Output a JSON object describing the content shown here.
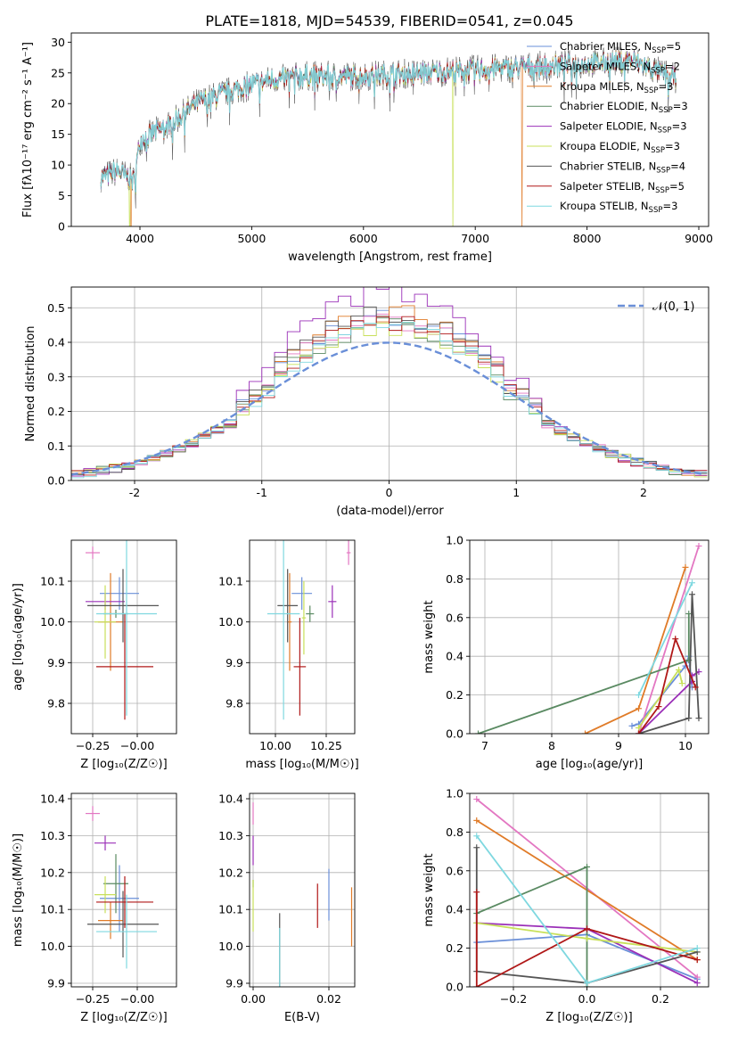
{
  "figure": {
    "suptitle": "PLATE=1818, MJD=54539, FIBERID=0541, z=0.045"
  },
  "legend_entries": [
    {
      "label": "Chabrier MILES, N",
      "sub": "SSP",
      "suffix": "=5",
      "color": "#6a8fd8"
    },
    {
      "label": "Salpeter MILES, N",
      "sub": "SSP",
      "suffix": "=2",
      "color": "#e377c2"
    },
    {
      "label": "Kroupa MILES, N",
      "sub": "SSP",
      "suffix": "=3",
      "color": "#e07b28"
    },
    {
      "label": "Chabrier ELODIE, N",
      "sub": "SSP",
      "suffix": "=3",
      "color": "#5a8a62"
    },
    {
      "label": "Salpeter ELODIE, N",
      "sub": "SSP",
      "suffix": "=3",
      "color": "#9b30b8"
    },
    {
      "label": "Kroupa ELODIE, N",
      "sub": "SSP",
      "suffix": "=3",
      "color": "#c8e05a"
    },
    {
      "label": "Chabrier STELIB, N",
      "sub": "SSP",
      "suffix": "=4",
      "color": "#555555"
    },
    {
      "label": "Salpeter STELIB, N",
      "sub": "SSP",
      "suffix": "=5",
      "color": "#b01818"
    },
    {
      "label": "Kroupa STELIB, N",
      "sub": "SSP",
      "suffix": "=3",
      "color": "#7fd8e0"
    }
  ],
  "chart_data": [
    {
      "id": "spectrum",
      "type": "line",
      "xlabel": "wavelength [Angstrom, rest frame]",
      "ylabel": "Flux [fλ10⁻¹⁷ erg cm⁻² s⁻¹ A⁻¹]",
      "xlim": [
        3400,
        9050
      ],
      "ylim": [
        0,
        31.5
      ],
      "xticks": [
        4000,
        5000,
        6000,
        7000,
        8000,
        9000
      ],
      "yticks": [
        0,
        5,
        10,
        15,
        20,
        25,
        30
      ],
      "continuum": [
        [
          3650,
          8
        ],
        [
          3800,
          9
        ],
        [
          3950,
          7.5
        ],
        [
          4000,
          14
        ],
        [
          4300,
          17
        ],
        [
          4500,
          20
        ],
        [
          4800,
          22
        ],
        [
          5200,
          24
        ],
        [
          5500,
          24.5
        ],
        [
          6000,
          24.5
        ],
        [
          6500,
          25
        ],
        [
          7000,
          25.5
        ],
        [
          7500,
          26
        ],
        [
          8000,
          26.5
        ],
        [
          8400,
          27
        ],
        [
          8800,
          24
        ]
      ],
      "model_drops": [
        {
          "series": 5,
          "x": 6800
        },
        {
          "series": 2,
          "x": 7420
        },
        {
          "series": 5,
          "x": 3910
        },
        {
          "series": 2,
          "x": 3920
        }
      ]
    },
    {
      "id": "residuals",
      "type": "histogram",
      "xlabel": "(data-model)/error",
      "ylabel": "Normed distribution",
      "xlim": [
        -2.5,
        2.5
      ],
      "ylim": [
        0,
        0.56
      ],
      "xticks": [
        -2,
        -1,
        0,
        1,
        2
      ],
      "yticks": [
        0.0,
        0.1,
        0.2,
        0.3,
        0.4,
        0.5
      ],
      "bin_width": 0.1,
      "legend": "𝒩(0, 1)",
      "series_peaks": [
        0.46,
        0.45,
        0.47,
        0.44,
        0.53,
        0.43,
        0.47,
        0.45,
        0.44
      ]
    },
    {
      "id": "age_vs_Z",
      "type": "scatter",
      "xlabel": "Z [log₁₀(Z/Z☉)]",
      "ylabel": "age  [log₁₀(age/yr)]",
      "xlim": [
        -0.32,
        0.19
      ],
      "ylim": [
        9.72,
        10.2
      ],
      "xticks": [
        -0.25,
        0.0
      ],
      "xticklabels": [
        "−0.25",
        "−0.00"
      ],
      "yticks": [
        9.8,
        9.9,
        10.0,
        10.1
      ],
      "points": [
        {
          "x": -0.1,
          "xerr": 0.11,
          "y": 10.07,
          "yerr": 0.04
        },
        {
          "x": -0.25,
          "xerr": 0.04,
          "y": 10.17,
          "yerr": 0.015
        },
        {
          "x": -0.15,
          "xerr": 0.07,
          "y": 10.0,
          "yerr": 0.12
        },
        {
          "x": -0.12,
          "xerr": 0.07,
          "y": 10.02,
          "yerr": 0.01
        },
        {
          "x": -0.18,
          "xerr": 0.11,
          "y": 10.05,
          "yerr": 0.02
        },
        {
          "x": -0.18,
          "xerr": 0.06,
          "y": 10.0,
          "yerr": 0.09
        },
        {
          "x": -0.08,
          "xerr": 0.2,
          "y": 10.04,
          "yerr": 0.09
        },
        {
          "x": -0.07,
          "xerr": 0.16,
          "y": 9.89,
          "yerr": 0.13
        },
        {
          "x": -0.06,
          "xerr": 0.17,
          "y": 10.02,
          "yerr": 0.25
        }
      ]
    },
    {
      "id": "age_vs_mass",
      "type": "scatter",
      "xlabel": "mass [log₁₀(M/M☉)]",
      "ylabel": "",
      "xlim": [
        9.9,
        10.41
      ],
      "ylim": [
        9.72,
        10.2
      ],
      "xticks": [
        10.0,
        10.25
      ],
      "xticklabels": [
        "10.00",
        "10.25"
      ],
      "yticks": [
        9.8,
        9.9,
        10.0,
        10.1
      ],
      "points": [
        {
          "x": 10.13,
          "xerr": 0.05,
          "y": 10.07,
          "yerr": 0.04
        },
        {
          "x": 10.36,
          "xerr": 0.01,
          "y": 10.17,
          "yerr": 0.03
        },
        {
          "x": 10.07,
          "xerr": 0.01,
          "y": 10.0,
          "yerr": 0.12
        },
        {
          "x": 10.17,
          "xerr": 0.02,
          "y": 10.02,
          "yerr": 0.02
        },
        {
          "x": 10.28,
          "xerr": 0.02,
          "y": 10.05,
          "yerr": 0.04
        },
        {
          "x": 10.14,
          "xerr": 0.01,
          "y": 10.01,
          "yerr": 0.09
        },
        {
          "x": 10.06,
          "xerr": 0.05,
          "y": 10.04,
          "yerr": 0.09
        },
        {
          "x": 10.12,
          "xerr": 0.03,
          "y": 9.89,
          "yerr": 0.12
        },
        {
          "x": 10.04,
          "xerr": 0.08,
          "y": 10.02,
          "yerr": 0.26
        }
      ]
    },
    {
      "id": "weight_vs_age",
      "type": "line",
      "xlabel": "age  [log₁₀(age/yr)]",
      "ylabel": "mass weight",
      "xlim": [
        6.75,
        10.35
      ],
      "ylim": [
        0,
        1.0
      ],
      "xticks": [
        7,
        8,
        9,
        10
      ],
      "yticks": [
        0.0,
        0.2,
        0.4,
        0.6,
        0.8,
        1.0
      ],
      "series": [
        [
          [
            9.2,
            0.04
          ],
          [
            9.3,
            0.05
          ],
          [
            10.0,
            0.35
          ],
          [
            10.05,
            0.4
          ],
          [
            10.1,
            0.24
          ]
        ],
        [
          [
            9.3,
            0.0
          ],
          [
            10.2,
            0.97
          ]
        ],
        [
          [
            8.5,
            0.0
          ],
          [
            9.3,
            0.13
          ],
          [
            10.0,
            0.86
          ]
        ],
        [
          [
            6.9,
            0.0
          ],
          [
            10.05,
            0.38
          ],
          [
            10.05,
            0.62
          ]
        ],
        [
          [
            9.3,
            0.0
          ],
          [
            10.1,
            0.27
          ],
          [
            10.1,
            0.3
          ],
          [
            10.2,
            0.32
          ]
        ],
        [
          [
            9.3,
            0.03
          ],
          [
            9.9,
            0.33
          ],
          [
            9.95,
            0.26
          ]
        ],
        [
          [
            9.3,
            0.0
          ],
          [
            10.05,
            0.08
          ],
          [
            10.1,
            0.72
          ],
          [
            10.2,
            0.08
          ]
        ],
        [
          [
            9.3,
            0.0
          ],
          [
            9.6,
            0.14
          ],
          [
            9.85,
            0.49
          ],
          [
            10.15,
            0.24
          ]
        ],
        [
          [
            9.3,
            0.2
          ],
          [
            10.1,
            0.78
          ]
        ]
      ]
    },
    {
      "id": "mass_vs_Z",
      "type": "scatter",
      "xlabel": "Z [log₁₀(Z/Z☉)]",
      "ylabel": "mass [log₁₀(M/M☉)]",
      "xlim": [
        -0.32,
        0.19
      ],
      "ylim": [
        9.89,
        10.41
      ],
      "xticks": [
        -0.25,
        0.0
      ],
      "xticklabels": [
        "−0.25",
        "−0.00"
      ],
      "yticks": [
        9.9,
        10.0,
        10.1,
        10.2,
        10.3,
        10.4
      ],
      "points": [
        {
          "x": -0.1,
          "xerr": 0.11,
          "y": 10.13,
          "yerr": 0.09
        },
        {
          "x": -0.25,
          "xerr": 0.04,
          "y": 10.36,
          "yerr": 0.02
        },
        {
          "x": -0.15,
          "xerr": 0.07,
          "y": 10.07,
          "yerr": 0.05
        },
        {
          "x": -0.12,
          "xerr": 0.07,
          "y": 10.17,
          "yerr": 0.08
        },
        {
          "x": -0.18,
          "xerr": 0.06,
          "y": 10.28,
          "yerr": 0.02
        },
        {
          "x": -0.18,
          "xerr": 0.06,
          "y": 10.14,
          "yerr": 0.05
        },
        {
          "x": -0.08,
          "xerr": 0.2,
          "y": 10.06,
          "yerr": 0.09
        },
        {
          "x": -0.07,
          "xerr": 0.16,
          "y": 10.12,
          "yerr": 0.07
        },
        {
          "x": -0.06,
          "xerr": 0.17,
          "y": 10.04,
          "yerr": 0.1
        }
      ]
    },
    {
      "id": "mass_vs_ebv",
      "type": "scatter",
      "xlabel": "E(B-V)",
      "ylabel": "",
      "xlim": [
        -0.001,
        0.028
      ],
      "ylim": [
        9.89,
        10.41
      ],
      "xticks": [
        0.0,
        0.02
      ],
      "xticklabels": [
        "0.00",
        "0.02"
      ],
      "yticks": [
        9.9,
        10.0,
        10.1,
        10.2,
        10.3,
        10.4
      ],
      "points": [
        {
          "x": 0.02,
          "xerr": 0,
          "y": 10.14,
          "yerr": 0.07
        },
        {
          "x": 0.0,
          "xerr": 0,
          "y": 10.36,
          "yerr": 0.03
        },
        {
          "x": 0.026,
          "xerr": 0,
          "y": 10.08,
          "yerr": 0.08
        },
        {
          "x": 0.0,
          "xerr": 0,
          "y": 10.17,
          "yerr": 0.01
        },
        {
          "x": 0.0,
          "xerr": 0,
          "y": 10.26,
          "yerr": 0.04
        },
        {
          "x": 0.0,
          "xerr": 0,
          "y": 10.11,
          "yerr": 0.07
        },
        {
          "x": 0.007,
          "xerr": 0,
          "y": 9.99,
          "yerr": 0.1
        },
        {
          "x": 0.017,
          "xerr": 0,
          "y": 10.11,
          "yerr": 0.06
        },
        {
          "x": 0.007,
          "xerr": 0,
          "y": 9.97,
          "yerr": 0.08
        }
      ]
    },
    {
      "id": "weight_vs_Z",
      "type": "line",
      "xlabel": "Z [log₁₀(Z/Z☉)]",
      "ylabel": "mass weight",
      "xlim": [
        -0.32,
        0.32
      ],
      "ylim": [
        0,
        1.0
      ],
      "xticks": [
        -0.2,
        0.0,
        0.2
      ],
      "xticklabels": [
        "−0.2",
        "0.0",
        "0.2"
      ],
      "yticks": [
        0.0,
        0.2,
        0.4,
        0.6,
        0.8,
        1.0
      ],
      "series": [
        [
          [
            -0.3,
            0.23
          ],
          [
            0.0,
            0.27
          ],
          [
            0.3,
            0.04
          ]
        ],
        [
          [
            -0.3,
            0.97
          ],
          [
            0.3,
            0.05
          ]
        ],
        [
          [
            -0.3,
            0.86
          ],
          [
            0.3,
            0.14
          ]
        ],
        [
          [
            -0.3,
            0.38
          ],
          [
            0.0,
            0.62
          ],
          [
            0.0,
            0.0
          ]
        ],
        [
          [
            -0.3,
            0.33
          ],
          [
            0.0,
            0.3
          ],
          [
            0.3,
            0.02
          ]
        ],
        [
          [
            -0.3,
            0.33
          ],
          [
            0.0,
            0.25
          ],
          [
            0.3,
            0.18
          ]
        ],
        [
          [
            -0.3,
            0.72
          ],
          [
            -0.3,
            0.08
          ],
          [
            0.0,
            0.02
          ],
          [
            0.3,
            0.18
          ]
        ],
        [
          [
            -0.3,
            0.49
          ],
          [
            -0.3,
            0.0
          ],
          [
            0.0,
            0.3
          ],
          [
            0.3,
            0.14
          ]
        ],
        [
          [
            -0.3,
            0.78
          ],
          [
            0.0,
            0.02
          ],
          [
            0.3,
            0.2
          ]
        ]
      ]
    }
  ]
}
